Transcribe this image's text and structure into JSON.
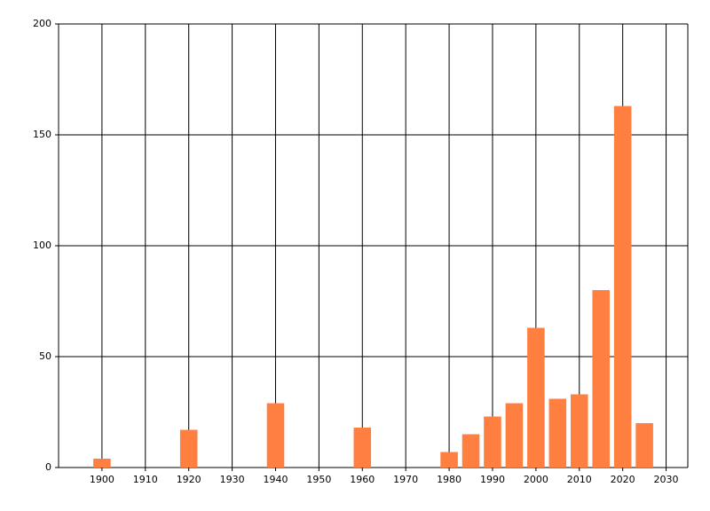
{
  "chart_data": {
    "type": "bar",
    "x": [
      1900,
      1920,
      1940,
      1960,
      1980,
      1985,
      1990,
      1995,
      2000,
      2005,
      2010,
      2015,
      2020,
      2025
    ],
    "values": [
      4,
      17,
      29,
      18,
      7,
      15,
      23,
      29,
      63,
      31,
      33,
      80,
      163,
      20
    ],
    "color": "#ff7f40",
    "xlim": [
      1890,
      2035
    ],
    "xticks": [
      1900,
      1910,
      1920,
      1930,
      1940,
      1950,
      1960,
      1970,
      1980,
      1990,
      2000,
      2010,
      2020,
      2030
    ],
    "ylim": [
      0,
      200
    ],
    "yticks": [
      0,
      50,
      100,
      150,
      200
    ],
    "grid": true
  }
}
